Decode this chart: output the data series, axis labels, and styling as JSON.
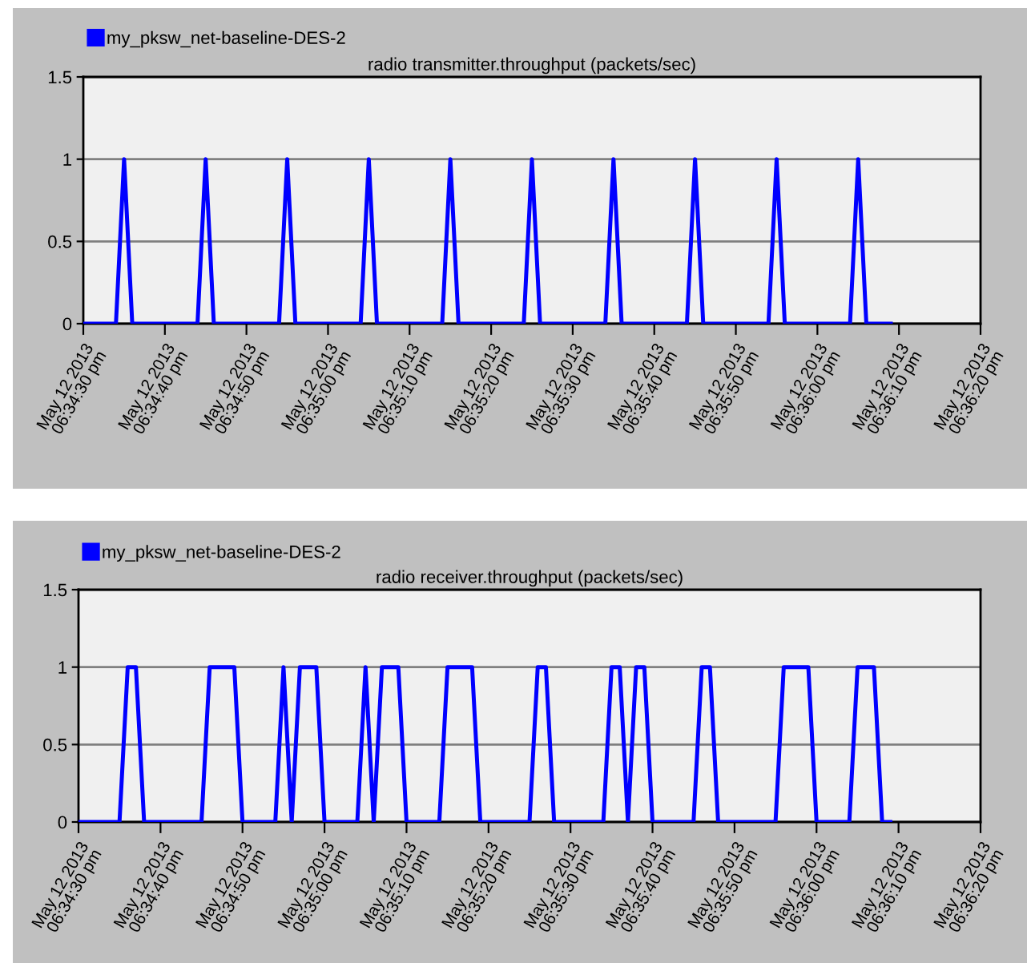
{
  "chart_data": [
    {
      "type": "line",
      "title": "radio transmitter.throughput (packets/sec)",
      "series": [
        {
          "name": "my_pksw_net-baseline-DES-2",
          "color": "#0000ff",
          "x": [
            "2013-05-12T18:34:30",
            "2013-05-12T18:34:34",
            "2013-05-12T18:34:35",
            "2013-05-12T18:34:36",
            "2013-05-12T18:34:44",
            "2013-05-12T18:34:45",
            "2013-05-12T18:34:46",
            "2013-05-12T18:34:54",
            "2013-05-12T18:34:55",
            "2013-05-12T18:34:56",
            "2013-05-12T18:35:04",
            "2013-05-12T18:35:05",
            "2013-05-12T18:35:06",
            "2013-05-12T18:35:14",
            "2013-05-12T18:35:15",
            "2013-05-12T18:35:16",
            "2013-05-12T18:35:24",
            "2013-05-12T18:35:25",
            "2013-05-12T18:35:26",
            "2013-05-12T18:35:34",
            "2013-05-12T18:35:35",
            "2013-05-12T18:35:36",
            "2013-05-12T18:35:44",
            "2013-05-12T18:35:45",
            "2013-05-12T18:35:46",
            "2013-05-12T18:35:54",
            "2013-05-12T18:35:55",
            "2013-05-12T18:35:56",
            "2013-05-12T18:36:04",
            "2013-05-12T18:36:05",
            "2013-05-12T18:36:06",
            "2013-05-12T18:36:09"
          ],
          "values": [
            0,
            0,
            1,
            0,
            0,
            1,
            0,
            0,
            1,
            0,
            0,
            1,
            0,
            0,
            1,
            0,
            0,
            1,
            0,
            0,
            1,
            0,
            0,
            1,
            0,
            0,
            1,
            0,
            0,
            1,
            0,
            0
          ]
        }
      ],
      "xlim": [
        "2013-05-12T18:34:30",
        "2013-05-12T18:36:20"
      ],
      "xticks": [
        {
          "value": "2013-05-12T18:34:30",
          "label": "May 12 2013\n06:34:30 pm"
        },
        {
          "value": "2013-05-12T18:34:40",
          "label": "May 12 2013\n06:34:40 pm"
        },
        {
          "value": "2013-05-12T18:34:50",
          "label": "May 12 2013\n06:34:50 pm"
        },
        {
          "value": "2013-05-12T18:35:00",
          "label": "May 12 2013\n06:35:00 pm"
        },
        {
          "value": "2013-05-12T18:35:10",
          "label": "May 12 2013\n06:35:10 pm"
        },
        {
          "value": "2013-05-12T18:35:20",
          "label": "May 12 2013\n06:35:20 pm"
        },
        {
          "value": "2013-05-12T18:35:30",
          "label": "May 12 2013\n06:35:30 pm"
        },
        {
          "value": "2013-05-12T18:35:40",
          "label": "May 12 2013\n06:35:40 pm"
        },
        {
          "value": "2013-05-12T18:35:50",
          "label": "May 12 2013\n06:35:50 pm"
        },
        {
          "value": "2013-05-12T18:36:00",
          "label": "May 12 2013\n06:36:00 pm"
        },
        {
          "value": "2013-05-12T18:36:10",
          "label": "May 12 2013\n06:36:10 pm"
        },
        {
          "value": "2013-05-12T18:36:20",
          "label": "May 12 2013\n06:36:20 pm"
        }
      ],
      "ylim": [
        0,
        1.5
      ],
      "yticks": [
        0,
        0.5,
        1,
        1.5
      ],
      "grid": "y",
      "legend": "top left",
      "line_style": "solid",
      "marker": "none"
    },
    {
      "type": "line",
      "title": "radio receiver.throughput (packets/sec)",
      "series": [
        {
          "name": "my_pksw_net-baseline-DES-2",
          "color": "#0000ff",
          "x": [
            "2013-05-12T18:34:30",
            "2013-05-12T18:34:35",
            "2013-05-12T18:34:36",
            "2013-05-12T18:34:37",
            "2013-05-12T18:34:38",
            "2013-05-12T18:34:45",
            "2013-05-12T18:34:46",
            "2013-05-12T18:34:49",
            "2013-05-12T18:34:50",
            "2013-05-12T18:34:54",
            "2013-05-12T18:34:55",
            "2013-05-12T18:34:56",
            "2013-05-12T18:34:57",
            "2013-05-12T18:34:59",
            "2013-05-12T18:35:00",
            "2013-05-12T18:35:04",
            "2013-05-12T18:35:05",
            "2013-05-12T18:35:06",
            "2013-05-12T18:35:07",
            "2013-05-12T18:35:09",
            "2013-05-12T18:35:10",
            "2013-05-12T18:35:14",
            "2013-05-12T18:35:15",
            "2013-05-12T18:35:18",
            "2013-05-12T18:35:19",
            "2013-05-12T18:35:25",
            "2013-05-12T18:35:26",
            "2013-05-12T18:35:27",
            "2013-05-12T18:35:28",
            "2013-05-12T18:35:34",
            "2013-05-12T18:35:35",
            "2013-05-12T18:35:36",
            "2013-05-12T18:35:37",
            "2013-05-12T18:35:38",
            "2013-05-12T18:35:39",
            "2013-05-12T18:35:40",
            "2013-05-12T18:35:45",
            "2013-05-12T18:35:46",
            "2013-05-12T18:35:47",
            "2013-05-12T18:35:48",
            "2013-05-12T18:35:55",
            "2013-05-12T18:35:56",
            "2013-05-12T18:35:59",
            "2013-05-12T18:36:00",
            "2013-05-12T18:36:04",
            "2013-05-12T18:36:05",
            "2013-05-12T18:36:07",
            "2013-05-12T18:36:08",
            "2013-05-12T18:36:09"
          ],
          "values": [
            0,
            0,
            1,
            1,
            0,
            0,
            1,
            1,
            0,
            0,
            1,
            0,
            1,
            1,
            0,
            0,
            1,
            0,
            1,
            1,
            0,
            0,
            1,
            1,
            0,
            0,
            1,
            1,
            0,
            0,
            1,
            1,
            0,
            1,
            1,
            0,
            0,
            1,
            1,
            0,
            0,
            1,
            1,
            0,
            0,
            1,
            1,
            0,
            0
          ]
        }
      ],
      "xlim": [
        "2013-05-12T18:34:30",
        "2013-05-12T18:36:20"
      ],
      "xticks": [
        {
          "value": "2013-05-12T18:34:30",
          "label": "May 12 2013\n06:34:30 pm"
        },
        {
          "value": "2013-05-12T18:34:40",
          "label": "May 12 2013\n06:34:40 pm"
        },
        {
          "value": "2013-05-12T18:34:50",
          "label": "May 12 2013\n06:34:50 pm"
        },
        {
          "value": "2013-05-12T18:35:00",
          "label": "May 12 2013\n06:35:00 pm"
        },
        {
          "value": "2013-05-12T18:35:10",
          "label": "May 12 2013\n06:35:10 pm"
        },
        {
          "value": "2013-05-12T18:35:20",
          "label": "May 12 2013\n06:35:20 pm"
        },
        {
          "value": "2013-05-12T18:35:30",
          "label": "May 12 2013\n06:35:30 pm"
        },
        {
          "value": "2013-05-12T18:35:40",
          "label": "May 12 2013\n06:35:40 pm"
        },
        {
          "value": "2013-05-12T18:35:50",
          "label": "May 12 2013\n06:35:50 pm"
        },
        {
          "value": "2013-05-12T18:36:00",
          "label": "May 12 2013\n06:36:00 pm"
        },
        {
          "value": "2013-05-12T18:36:10",
          "label": "May 12 2013\n06:36:10 pm"
        },
        {
          "value": "2013-05-12T18:36:20",
          "label": "May 12 2013\n06:36:20 pm"
        }
      ],
      "ylim": [
        0,
        1.5
      ],
      "yticks": [
        0,
        0.5,
        1,
        1.5
      ],
      "grid": "y",
      "legend": "top left",
      "line_style": "solid",
      "marker": "none"
    }
  ]
}
